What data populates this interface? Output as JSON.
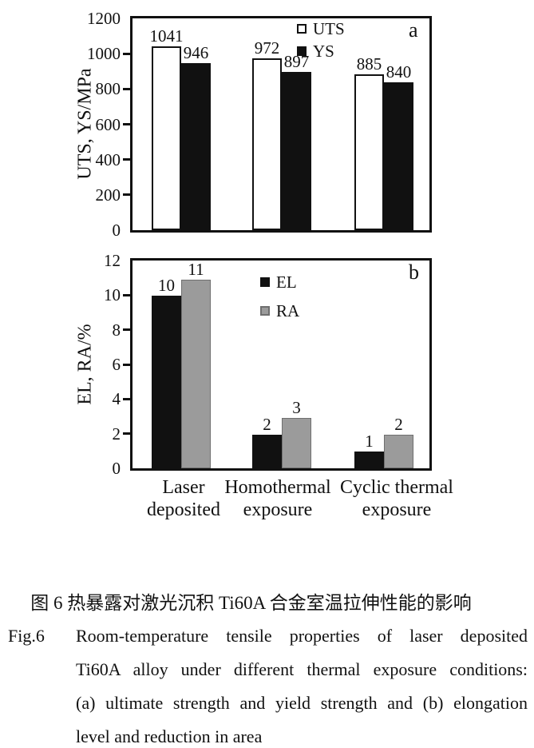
{
  "page": {
    "background": "#ffffff",
    "text_color": "#111111"
  },
  "chart_data": [
    {
      "type": "bar",
      "panel_label": "a",
      "title": "",
      "xlabel": "",
      "ylabel": "UTS, YS/MPa",
      "ylim": [
        0,
        1200
      ],
      "yticks": [
        0,
        200,
        400,
        600,
        800,
        1000,
        1200
      ],
      "grid": false,
      "legend_position": "inside-top-center",
      "categories": [
        "Laser deposited",
        "Homothermal exposure",
        "Cyclic thermal exposure"
      ],
      "series": [
        {
          "name": "UTS",
          "values": [
            1041,
            972,
            885
          ],
          "color": "#ffffff",
          "border": "#111111"
        },
        {
          "name": "YS",
          "values": [
            946,
            897,
            840
          ],
          "color": "#111111",
          "border": "#111111"
        }
      ],
      "value_labels": [
        [
          "1041",
          "972",
          "885"
        ],
        [
          "946",
          "897",
          "840"
        ]
      ]
    },
    {
      "type": "bar",
      "panel_label": "b",
      "title": "",
      "xlabel": "",
      "ylabel": "EL, RA/%",
      "ylim": [
        0,
        12
      ],
      "yticks": [
        0,
        2,
        4,
        6,
        8,
        10,
        12
      ],
      "grid": false,
      "legend_position": "inside-top-center",
      "categories": [
        "Laser deposited",
        "Homothermal exposure",
        "Cyclic thermal exposure"
      ],
      "category_lines": [
        [
          "Laser",
          "deposited"
        ],
        [
          "Homothermal",
          "exposure"
        ],
        [
          "Cyclic thermal",
          "exposure"
        ]
      ],
      "series": [
        {
          "name": "EL",
          "values": [
            10,
            2,
            1
          ],
          "drawn_values": [
            9.95,
            1.93,
            0.97
          ],
          "color": "#111111",
          "border": "#111111"
        },
        {
          "name": "RA",
          "values": [
            11,
            3,
            2
          ],
          "drawn_values": [
            10.9,
            2.92,
            1.93
          ],
          "color": "#9b9b9b",
          "border": "#6f6f6f"
        }
      ],
      "value_labels": [
        [
          "10",
          "2",
          "1"
        ],
        [
          "11",
          "3",
          "2"
        ]
      ]
    }
  ],
  "caption": {
    "zh": "图 6  热暴露对激光沉积 Ti60A 合金室温拉伸性能的影响",
    "en_label": "Fig.6",
    "en_lines": [
      "Room-temperature tensile properties of laser deposited",
      "Ti60A alloy under different thermal exposure conditions:",
      "(a) ultimate strength and yield strength and (b) elongation",
      "level and reduction in area"
    ]
  }
}
